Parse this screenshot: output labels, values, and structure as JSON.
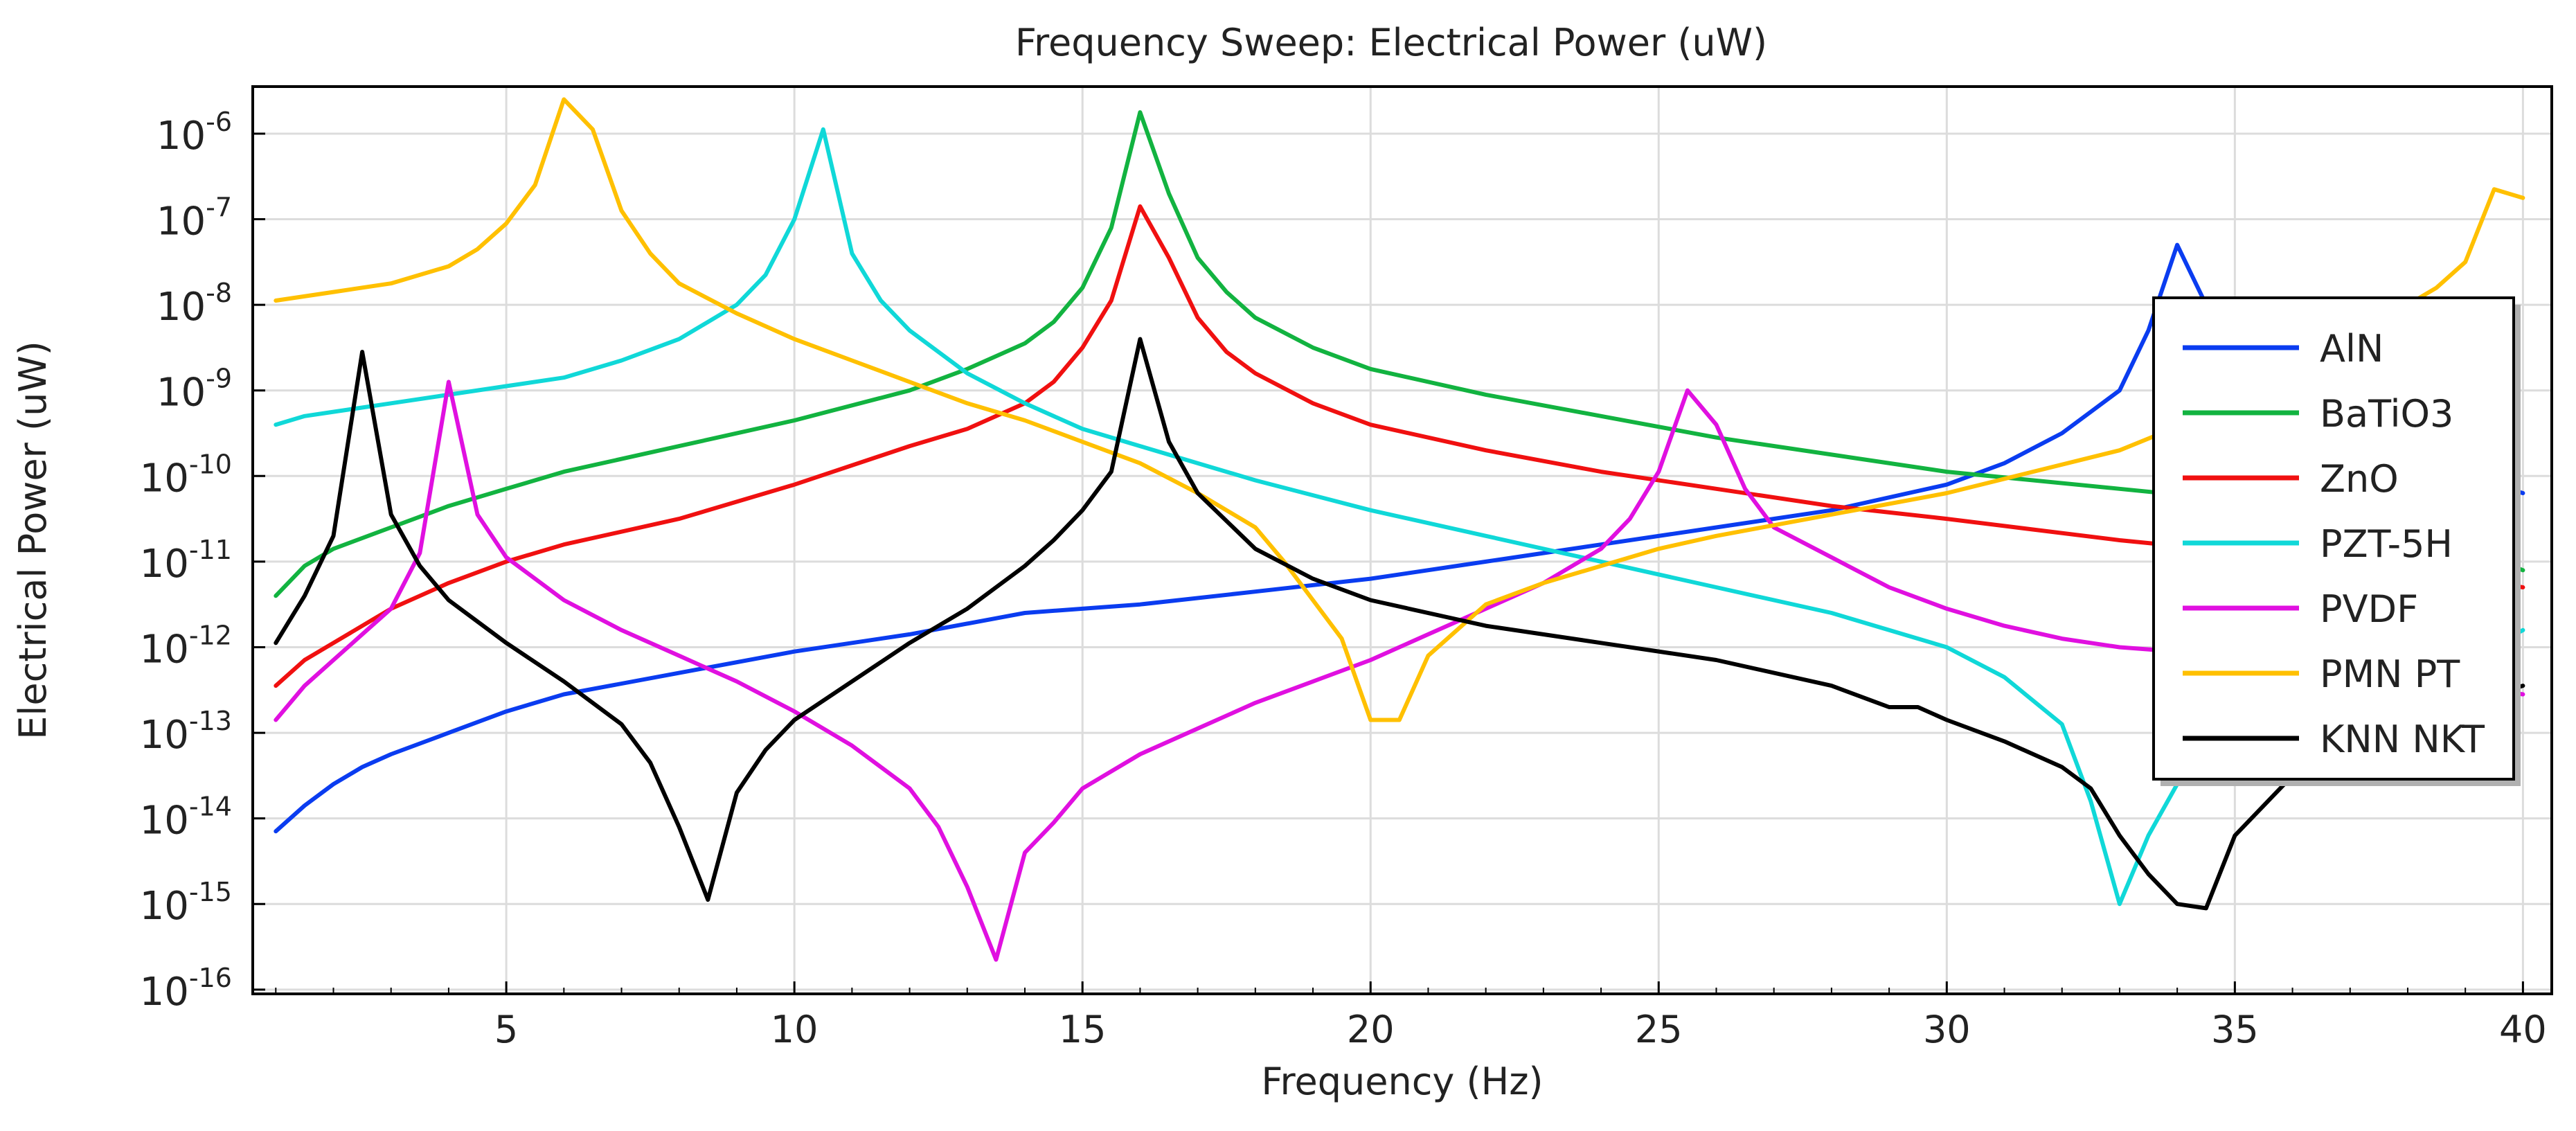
{
  "chart_data": {
    "type": "line",
    "title": "Frequency Sweep: Electrical Power (uW)",
    "xlabel": "Frequency (Hz)",
    "ylabel": "Electrical Power (uW)",
    "xlim": [
      0.6,
      40.5
    ],
    "x_ticks": [
      5,
      10,
      15,
      20,
      25,
      30,
      35,
      40
    ],
    "x_tick_labels": [
      "5",
      "10",
      "15",
      "20",
      "25",
      "30",
      "35",
      "40"
    ],
    "y_scale": "log",
    "ylim_exp": [
      -16.05,
      -5.45
    ],
    "y_tick_exps": [
      -16,
      -15,
      -14,
      -13,
      -12,
      -11,
      -10,
      -9,
      -8,
      -7,
      -6
    ],
    "y_tick_base": "10",
    "y_tick_exp_labels": [
      "-16",
      "-15",
      "-14",
      "-13",
      "-12",
      "-11",
      "-10",
      "-9",
      "-8",
      "-7",
      "-6"
    ],
    "grid": true,
    "legend_position": "right",
    "series": [
      {
        "name": "AlN",
        "color": "#0a3cf0",
        "x": [
          1,
          1.5,
          2,
          2.5,
          3,
          4,
          5,
          6,
          8,
          10,
          12,
          14,
          16,
          18,
          20,
          22,
          24,
          26,
          28,
          30,
          31,
          32,
          32.5,
          33,
          33.5,
          34,
          34.5,
          35,
          35.5,
          36,
          37,
          38,
          39,
          40
        ],
        "y": [
          -14.15,
          -13.85,
          -13.6,
          -13.4,
          -13.25,
          -13.0,
          -12.75,
          -12.55,
          -12.3,
          -12.05,
          -11.85,
          -11.6,
          -11.5,
          -11.35,
          -11.2,
          -11.0,
          -10.8,
          -10.6,
          -10.4,
          -10.1,
          -9.85,
          -9.5,
          -9.25,
          -9.0,
          -8.3,
          -7.3,
          -8.0,
          -8.6,
          -9.0,
          -9.3,
          -9.6,
          -9.8,
          -10.0,
          -10.2
        ]
      },
      {
        "name": "BaTiO3",
        "color": "#12b340",
        "x": [
          1,
          1.5,
          2,
          3,
          4,
          5,
          6,
          8,
          10,
          12,
          13,
          14,
          14.5,
          15,
          15.5,
          16,
          16.5,
          17,
          17.5,
          18,
          19,
          20,
          22,
          24,
          26,
          28,
          30,
          33,
          36,
          38,
          40
        ],
        "y": [
          -11.4,
          -11.05,
          -10.85,
          -10.6,
          -10.35,
          -10.15,
          -9.95,
          -9.65,
          -9.35,
          -9.0,
          -8.75,
          -8.45,
          -8.2,
          -7.8,
          -7.1,
          -5.75,
          -6.7,
          -7.45,
          -7.85,
          -8.15,
          -8.5,
          -8.75,
          -9.05,
          -9.3,
          -9.55,
          -9.75,
          -9.95,
          -10.15,
          -10.35,
          -10.6,
          -11.1
        ]
      },
      {
        "name": "ZnO",
        "color": "#f01010",
        "x": [
          1,
          1.5,
          2,
          3,
          4,
          5,
          6,
          8,
          10,
          12,
          13,
          14,
          14.5,
          15,
          15.5,
          16,
          16.5,
          17,
          17.5,
          18,
          19,
          20,
          22,
          24,
          26,
          28,
          30,
          33,
          36,
          38,
          40
        ],
        "y": [
          -12.45,
          -12.15,
          -11.95,
          -11.55,
          -11.25,
          -11.0,
          -10.8,
          -10.5,
          -10.1,
          -9.65,
          -9.45,
          -9.15,
          -8.9,
          -8.5,
          -7.95,
          -6.85,
          -7.45,
          -8.15,
          -8.55,
          -8.8,
          -9.15,
          -9.4,
          -9.7,
          -9.95,
          -10.15,
          -10.35,
          -10.5,
          -10.75,
          -10.95,
          -11.1,
          -11.3
        ]
      },
      {
        "name": "PZT-5H",
        "color": "#10d8d8",
        "x": [
          1,
          1.5,
          2,
          3,
          4,
          5,
          6,
          7,
          8,
          9,
          9.5,
          10,
          10.5,
          11,
          11.5,
          12,
          13,
          14,
          15,
          16,
          18,
          20,
          22,
          24,
          26,
          28,
          30,
          31,
          32,
          32.5,
          33,
          33.5,
          34,
          35,
          36,
          38,
          40
        ],
        "y": [
          -9.4,
          -9.3,
          -9.25,
          -9.15,
          -9.05,
          -8.95,
          -8.85,
          -8.65,
          -8.4,
          -8.0,
          -7.65,
          -7.0,
          -5.95,
          -7.4,
          -7.95,
          -8.3,
          -8.8,
          -9.15,
          -9.45,
          -9.65,
          -10.05,
          -10.4,
          -10.7,
          -11.0,
          -11.3,
          -11.6,
          -12.0,
          -12.35,
          -12.9,
          -13.8,
          -15.0,
          -14.2,
          -13.6,
          -13.3,
          -13.1,
          -12.5,
          -11.8
        ]
      },
      {
        "name": "PVDF",
        "color": "#e010e0",
        "x": [
          1,
          1.5,
          2,
          2.5,
          3,
          3.5,
          4,
          4.5,
          5,
          6,
          7,
          8,
          9,
          10,
          11,
          12,
          12.5,
          13,
          13.5,
          14,
          14.5,
          15,
          16,
          17,
          18,
          19,
          20,
          21,
          22,
          23,
          24,
          24.5,
          25,
          25.5,
          26,
          26.5,
          27,
          28,
          29,
          30,
          31,
          32,
          33,
          34,
          35,
          36,
          38,
          40
        ],
        "y": [
          -12.85,
          -12.45,
          -12.15,
          -11.85,
          -11.55,
          -10.9,
          -8.9,
          -10.45,
          -10.95,
          -11.45,
          -11.8,
          -12.1,
          -12.4,
          -12.75,
          -13.15,
          -13.65,
          -14.1,
          -14.8,
          -15.65,
          -14.4,
          -14.05,
          -13.65,
          -13.25,
          -12.95,
          -12.65,
          -12.4,
          -12.15,
          -11.85,
          -11.55,
          -11.25,
          -10.85,
          -10.5,
          -9.95,
          -9.0,
          -9.4,
          -10.15,
          -10.6,
          -10.95,
          -11.3,
          -11.55,
          -11.75,
          -11.9,
          -12.0,
          -12.05,
          -12.15,
          -12.2,
          -12.35,
          -12.55
        ]
      },
      {
        "name": "PMN PT",
        "color": "#ffc000",
        "x": [
          1,
          2,
          3,
          4,
          4.5,
          5,
          5.5,
          6,
          6.5,
          7,
          7.5,
          8,
          9,
          10,
          11,
          12,
          13,
          14,
          15,
          16,
          17,
          18,
          18.5,
          19,
          19.5,
          20,
          20.5,
          21,
          22,
          23,
          24,
          25,
          26,
          28,
          30,
          33,
          35,
          36,
          37,
          38,
          38.5,
          39,
          39.5,
          40
        ],
        "y": [
          -7.95,
          -7.85,
          -7.75,
          -7.55,
          -7.35,
          -7.05,
          -6.6,
          -5.6,
          -5.95,
          -6.9,
          -7.4,
          -7.75,
          -8.1,
          -8.4,
          -8.65,
          -8.9,
          -9.15,
          -9.35,
          -9.6,
          -9.85,
          -10.2,
          -10.6,
          -11.0,
          -11.45,
          -11.9,
          -12.85,
          -12.85,
          -12.1,
          -11.5,
          -11.25,
          -11.05,
          -10.85,
          -10.7,
          -10.45,
          -10.2,
          -9.7,
          -9.15,
          -8.75,
          -8.4,
          -8.0,
          -7.8,
          -7.5,
          -6.65,
          -6.75
        ]
      },
      {
        "name": "KNN NKT",
        "color": "#000000",
        "x": [
          1,
          1.5,
          2,
          2.5,
          3,
          3.5,
          4,
          5,
          6,
          7,
          7.5,
          8,
          8.5,
          9,
          9.5,
          10,
          11,
          12,
          13,
          14,
          14.5,
          15,
          15.5,
          16,
          16.5,
          17,
          18,
          19,
          20,
          22,
          24,
          26,
          28,
          29,
          29.5,
          30,
          31,
          32,
          32.5,
          33,
          33.5,
          34,
          34.5,
          35,
          36,
          37,
          38,
          39,
          40
        ],
        "y": [
          -11.95,
          -11.4,
          -10.7,
          -8.55,
          -10.45,
          -11.05,
          -11.45,
          -11.95,
          -12.4,
          -12.9,
          -13.35,
          -14.1,
          -14.95,
          -13.7,
          -13.2,
          -12.85,
          -12.4,
          -11.95,
          -11.55,
          -11.05,
          -10.75,
          -10.4,
          -9.95,
          -8.4,
          -9.6,
          -10.2,
          -10.85,
          -11.2,
          -11.45,
          -11.75,
          -11.95,
          -12.15,
          -12.45,
          -12.7,
          -12.7,
          -12.85,
          -13.1,
          -13.4,
          -13.65,
          -14.2,
          -14.65,
          -15.0,
          -15.05,
          -14.2,
          -13.5,
          -13.1,
          -12.85,
          -12.65,
          -12.45
        ]
      }
    ]
  }
}
